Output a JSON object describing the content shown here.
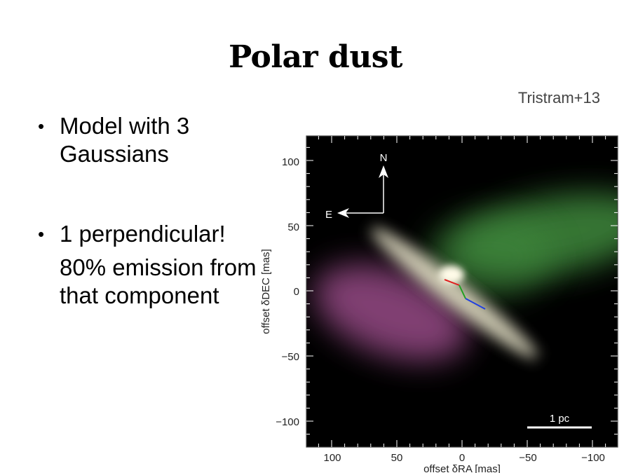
{
  "slide": {
    "title": "Polar dust",
    "citation": "Tristram+13",
    "bullets": [
      {
        "text": "Model with 3 Gaussians",
        "bullet": "•"
      },
      {
        "text": "1 perpendicular!",
        "bullet": "•",
        "sub": "80% emission from that component"
      }
    ]
  },
  "figure": {
    "x_label": "offset δRA [mas]",
    "y_label": "offset δDEC [mas]",
    "x_ticks": [
      100,
      50,
      0,
      -50,
      -100
    ],
    "y_ticks": [
      100,
      50,
      0,
      -50,
      -100
    ],
    "x_tick_labels": [
      "100",
      "50",
      "0",
      "−50",
      "−100"
    ],
    "y_tick_labels": [
      "100",
      "50",
      "0",
      "−50",
      "−100"
    ],
    "north_label": "N",
    "east_label": "E",
    "scale_label": "1 pc",
    "colors": {
      "frame": "#444444",
      "green_blob": "#3f8a3c",
      "magenta_blob": "#a0508f",
      "disk": "#e6e2c8",
      "red_segment": "#e02020",
      "green_segment": "#20a020",
      "blue_segment": "#2040e0"
    }
  }
}
